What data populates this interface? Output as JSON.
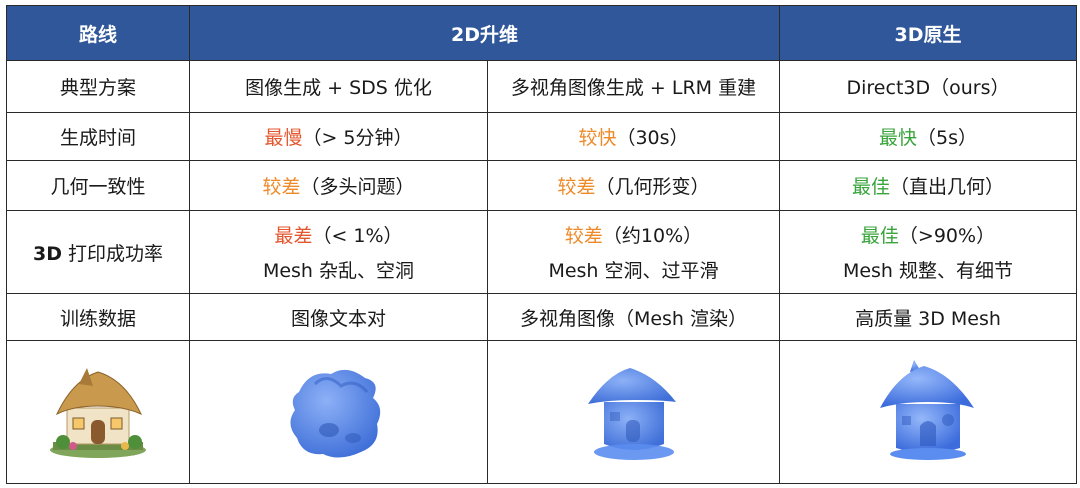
{
  "header": {
    "col1": "路线",
    "col2": "2D升维",
    "col3": "3D原生"
  },
  "rows": [
    {
      "label": "典型方案",
      "c2": "图像生成 + SDS 优化",
      "c3": "多视角图像生成 + LRM 重建",
      "c4": "Direct3D（ours）"
    },
    {
      "label": "生成时间",
      "c2_hl": "最慢",
      "c2_rest": "（> 5分钟）",
      "c3_hl": "较快",
      "c3_rest": "（30s）",
      "c4_hl": "最快",
      "c4_rest": "（5s）"
    },
    {
      "label": "几何一致性",
      "c2_hl": "较差",
      "c2_rest": "（多头问题）",
      "c3_hl": "较差",
      "c3_rest": "（几何形变）",
      "c4_hl": "最佳",
      "c4_rest": "（直出几何）"
    },
    {
      "label_bold": "3D",
      "label_rest": " 打印成功率",
      "c2_hl": "最差",
      "c2_rest": "（< 1%）",
      "c2_line2": "Mesh 杂乱、空洞",
      "c3_hl": "较差",
      "c3_rest": "（约10%）",
      "c3_line2": "Mesh 空洞、过平滑",
      "c4_hl": "最佳",
      "c4_rest": "（>90%）",
      "c4_line2": "Mesh 规整、有细节"
    },
    {
      "label": "训练数据",
      "c2": "图像文本对",
      "c3": "多视角图像（Mesh 渲染）",
      "c4": "高质量 3D Mesh"
    }
  ],
  "colors": {
    "header_bg": "#2f579a",
    "worst": "#e4572e",
    "medium": "#ee8a2a",
    "best": "#3aa43c",
    "mesh_blue": "#5b8df0"
  },
  "images": [
    {
      "name": "house-photo-icon",
      "desc": "cottage"
    },
    {
      "name": "sds-mesh-icon",
      "desc": "blue mesh"
    },
    {
      "name": "lrm-mesh-icon",
      "desc": "blue mesh"
    },
    {
      "name": "direct3d-mesh-icon",
      "desc": "blue mesh"
    }
  ]
}
